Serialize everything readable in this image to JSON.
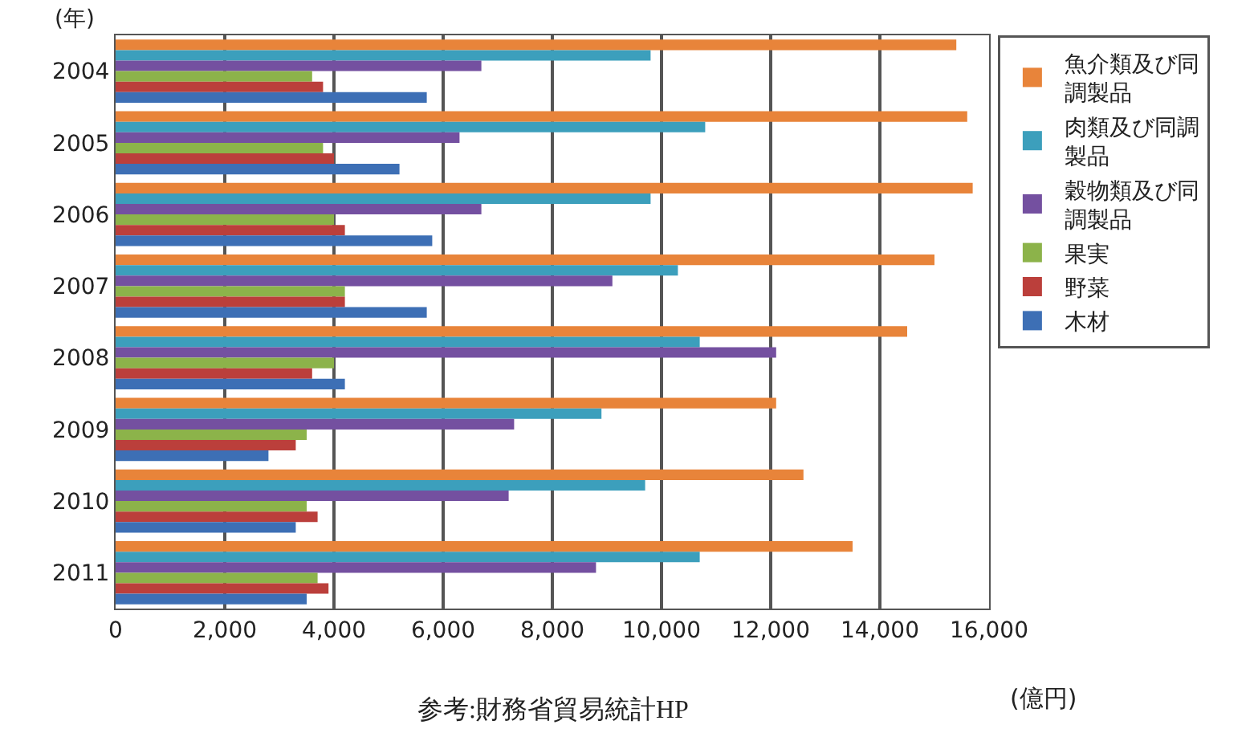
{
  "chart_data": {
    "type": "bar",
    "orientation": "horizontal",
    "ylabel": "(年)",
    "xlabel": "(億円)",
    "annotations": [
      "参考:財務省貿易統計HP"
    ],
    "categories": [
      "2004",
      "2005",
      "2006",
      "2007",
      "2008",
      "2009",
      "2010",
      "2011"
    ],
    "series": [
      {
        "name": "魚介類及び同調製品",
        "color": "#e8843a",
        "values": [
          15400,
          15600,
          15700,
          15000,
          14500,
          12100,
          12600,
          13500
        ]
      },
      {
        "name": "肉類及び同調製品",
        "color": "#3c9fbc",
        "values": [
          9800,
          10800,
          9800,
          10300,
          10700,
          8900,
          9700,
          10700
        ]
      },
      {
        "name": "穀物類及び同調製品",
        "color": "#7450a0",
        "values": [
          6700,
          6300,
          6700,
          9100,
          12100,
          7300,
          7200,
          8800
        ]
      },
      {
        "name": "果実",
        "color": "#8cb34a",
        "values": [
          3600,
          3800,
          4000,
          4200,
          4000,
          3500,
          3500,
          3700
        ]
      },
      {
        "name": "野菜",
        "color": "#bb3f3b",
        "values": [
          3800,
          4000,
          4200,
          4200,
          3600,
          3300,
          3700,
          3900
        ]
      },
      {
        "name": "木材",
        "color": "#3d6fb5",
        "values": [
          5700,
          5200,
          5800,
          5700,
          4200,
          2800,
          3300,
          3500
        ]
      }
    ],
    "xlim": [
      0,
      16000
    ],
    "xticks": [
      0,
      {
        "value": 2000,
        "label": "2,000"
      },
      {
        "value": 4000,
        "label": "4,000"
      },
      {
        "value": 6000,
        "label": "6,000"
      },
      {
        "value": 8000,
        "label": "8,000"
      },
      {
        "value": 10000,
        "label": "10,000"
      },
      {
        "value": 12000,
        "label": "12,000"
      },
      {
        "value": 14000,
        "label": "14,000"
      },
      {
        "value": 16000,
        "label": "16,000"
      }
    ],
    "grid": "x",
    "legend": "right"
  }
}
